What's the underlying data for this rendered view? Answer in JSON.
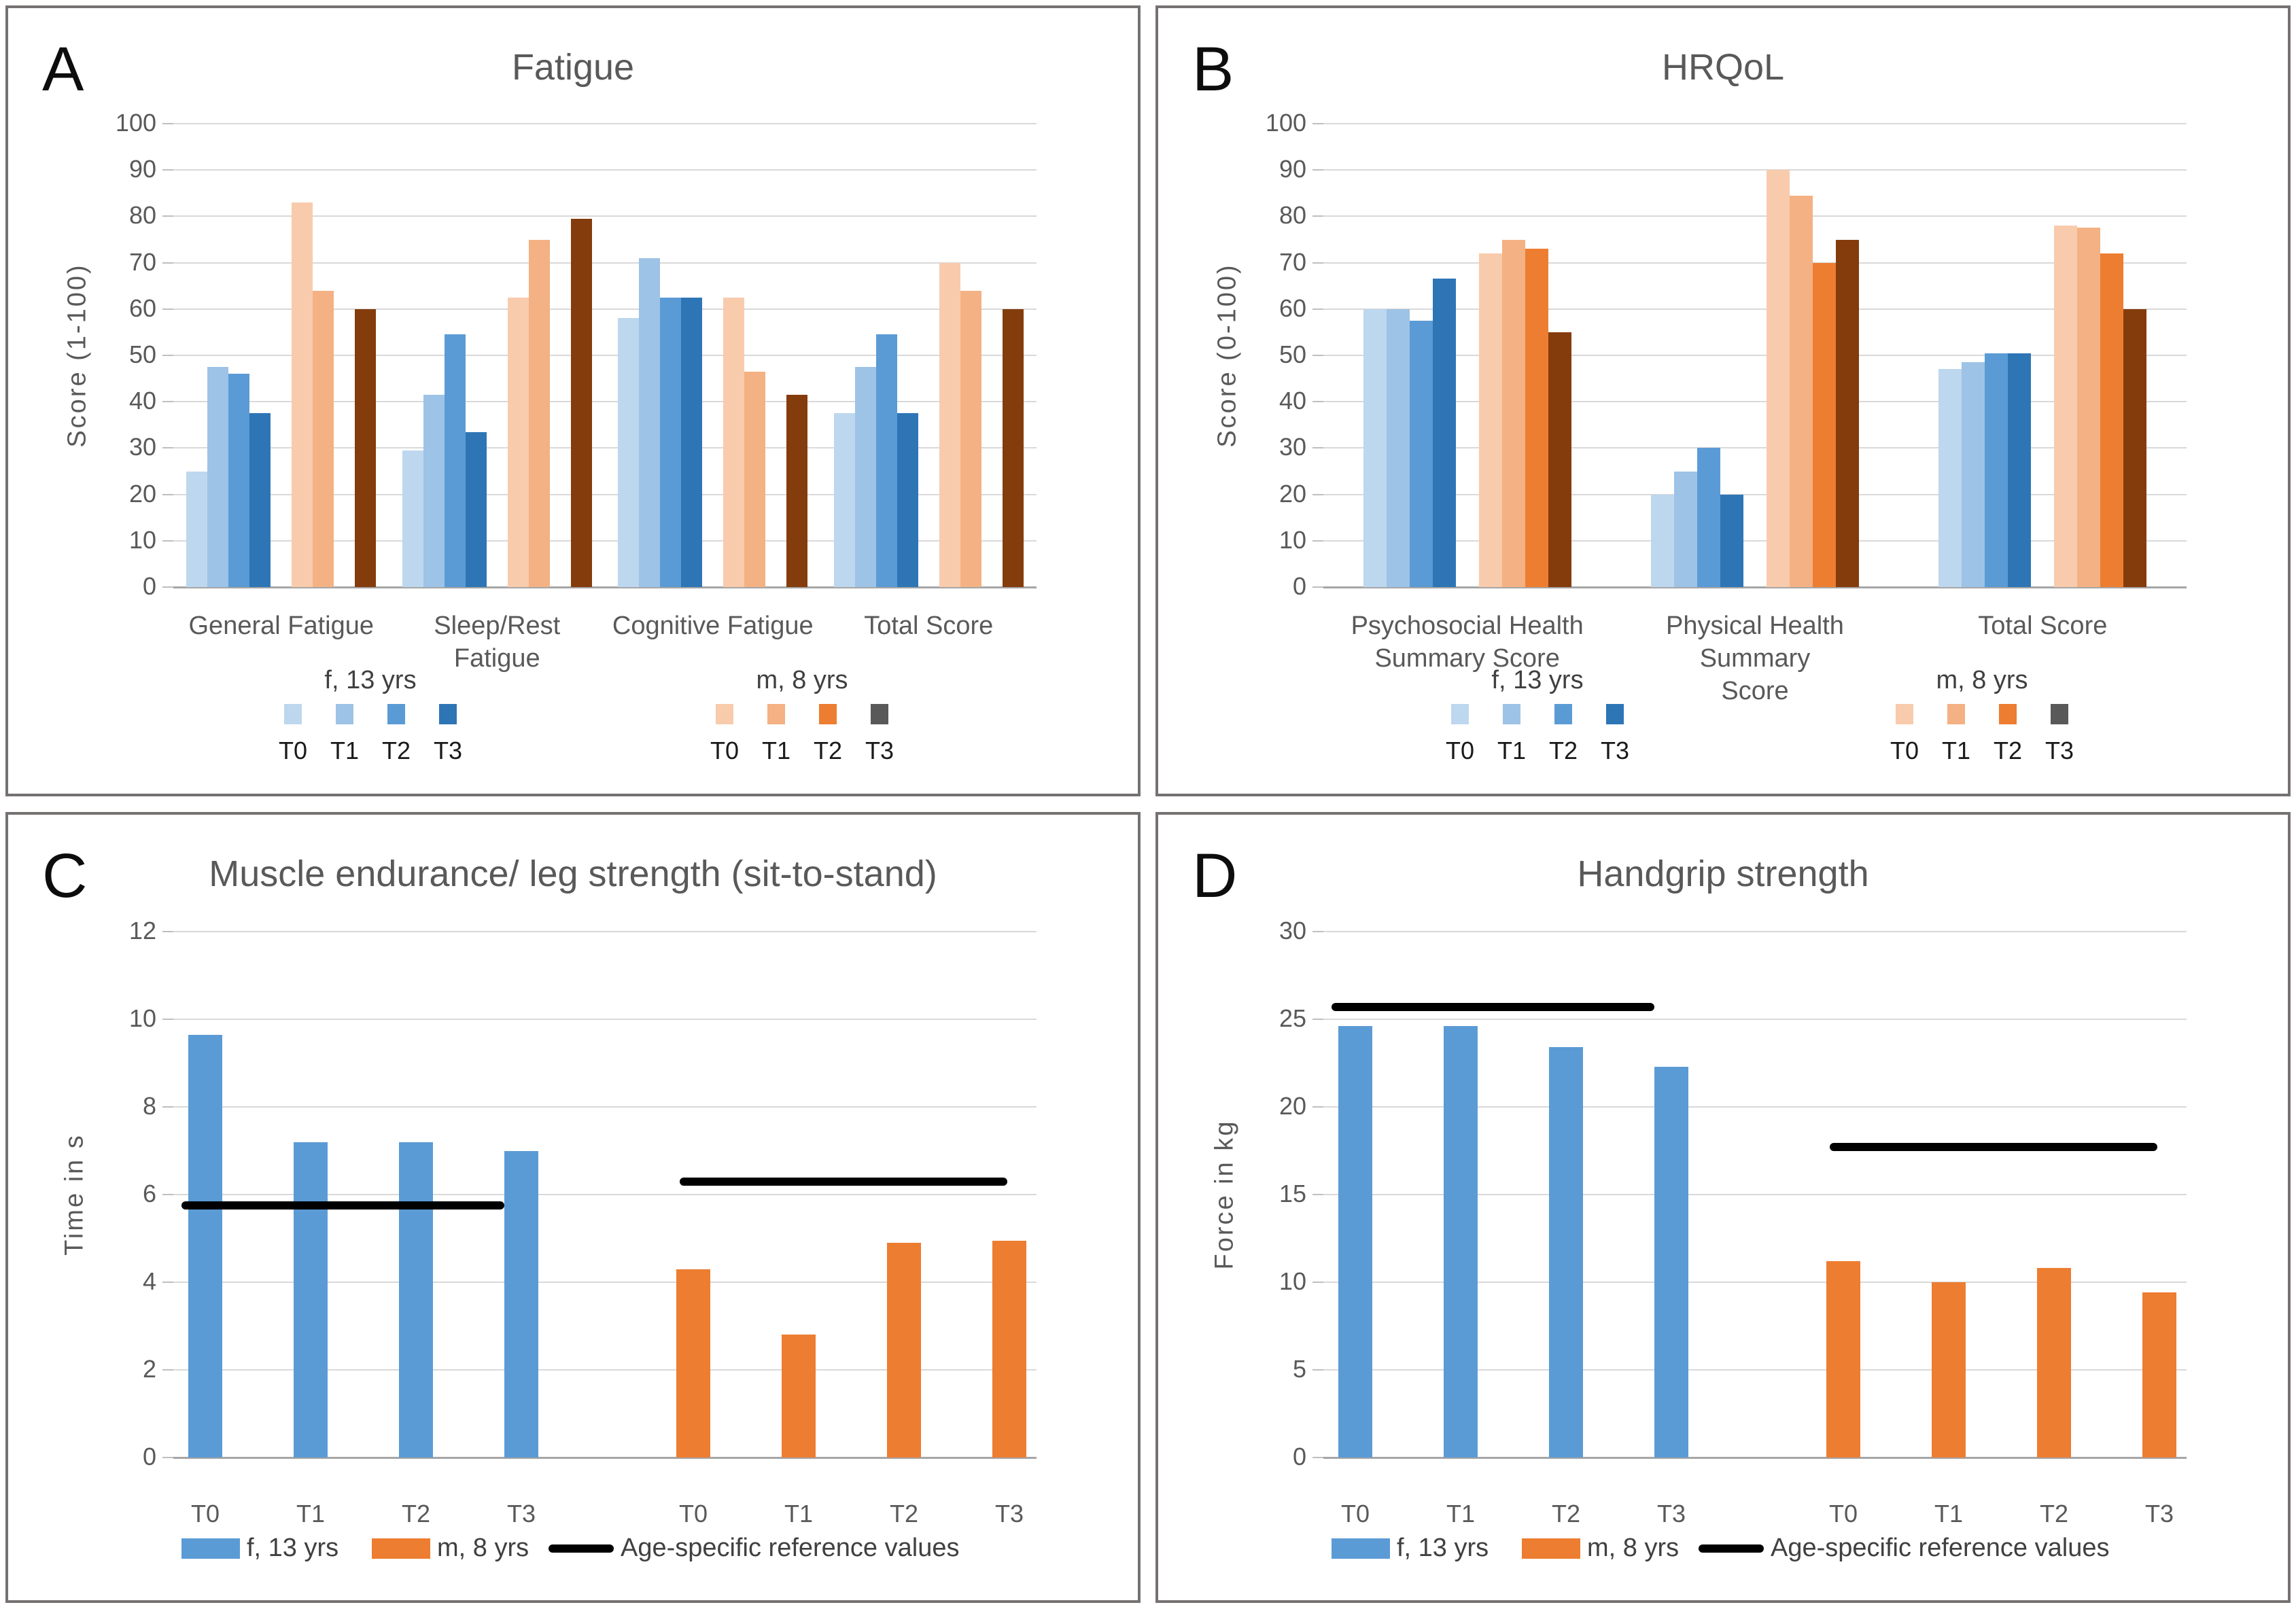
{
  "figure": {
    "background": "#FFFFFF",
    "panel_border_color": "#767171"
  },
  "colors": {
    "f_shades": [
      "#BDD7EE",
      "#9DC3E6",
      "#5B9BD5",
      "#2E75B6"
    ],
    "m_shades": [
      "#F8CBAD",
      "#F4B183",
      "#ED7D31",
      "#843C0C"
    ],
    "m_legend_swatches": [
      "#F8CBAD",
      "#F4B183",
      "#ED7D31",
      "#595959"
    ],
    "f_main": "#5B9BD5",
    "m_main": "#ED7D31",
    "reference_line": "#000000",
    "gridline": "#D9D9D9",
    "axis_line": "#A6A6A6",
    "tick_mark": "#BFBFBF",
    "text": "#595959"
  },
  "chart_data": [
    {
      "panel": "A",
      "type": "bar",
      "layout": "grouped",
      "title": "Fatigue",
      "ylabel": "Score (1-100)",
      "ylim": [
        0,
        100
      ],
      "ytick_step": 10,
      "yticks": [
        0,
        10,
        20,
        30,
        40,
        50,
        60,
        70,
        80,
        90,
        100
      ],
      "grid": true,
      "categories": [
        "General Fatigue",
        "Sleep/Rest Fatigue",
        "Cognitive Fatigue",
        "Total Score"
      ],
      "category_lines": [
        [
          "General Fatigue"
        ],
        [
          "Sleep/Rest Fatigue"
        ],
        [
          "Cognitive Fatigue"
        ],
        [
          "Total Score"
        ]
      ],
      "groups": [
        {
          "name": "f, 13 yrs",
          "series": [
            {
              "name": "T0",
              "values": [
                25,
                29.5,
                58,
                37.5
              ]
            },
            {
              "name": "T1",
              "values": [
                47.5,
                41.5,
                71,
                47.5
              ]
            },
            {
              "name": "T2",
              "values": [
                46,
                54.5,
                62.5,
                54.5
              ]
            },
            {
              "name": "T3",
              "values": [
                37.5,
                33.5,
                62.5,
                37.5
              ]
            }
          ]
        },
        {
          "name": "m, 8 yrs",
          "series": [
            {
              "name": "T0",
              "values": [
                83,
                62.5,
                62.5,
                70
              ]
            },
            {
              "name": "T1",
              "values": [
                64,
                75,
                46.5,
                64
              ]
            },
            {
              "name": "T2",
              "values": [
                null,
                null,
                null,
                null
              ]
            },
            {
              "name": "T3",
              "values": [
                60,
                79.5,
                41.5,
                60
              ]
            }
          ]
        }
      ],
      "legend": {
        "f_label": "f, 13 yrs",
        "m_label": "m, 8 yrs",
        "timepoints": [
          "T0",
          "T1",
          "T2",
          "T3"
        ]
      }
    },
    {
      "panel": "B",
      "type": "bar",
      "layout": "grouped",
      "title": "HRQoL",
      "ylabel": "Score (0-100)",
      "ylim": [
        0,
        100
      ],
      "ytick_step": 10,
      "yticks": [
        0,
        10,
        20,
        30,
        40,
        50,
        60,
        70,
        80,
        90,
        100
      ],
      "grid": true,
      "categories": [
        "Psychosocial Health Summary Score",
        "Physical Health Summary Score",
        "Total Score"
      ],
      "category_lines": [
        [
          "Psychosocial Health",
          "Summary Score"
        ],
        [
          "Physical Health Summary",
          "Score"
        ],
        [
          "Total Score"
        ]
      ],
      "groups": [
        {
          "name": "f, 13 yrs",
          "series": [
            {
              "name": "T0",
              "values": [
                60,
                20,
                47
              ]
            },
            {
              "name": "T1",
              "values": [
                60,
                25,
                48.5
              ]
            },
            {
              "name": "T2",
              "values": [
                57.5,
                30,
                50.5
              ]
            },
            {
              "name": "T3",
              "values": [
                66.5,
                20,
                50.5
              ]
            }
          ]
        },
        {
          "name": "m, 8 yrs",
          "series": [
            {
              "name": "T0",
              "values": [
                72,
                90,
                78
              ]
            },
            {
              "name": "T1",
              "values": [
                75,
                84.5,
                77.5
              ]
            },
            {
              "name": "T2",
              "values": [
                73,
                70,
                72
              ]
            },
            {
              "name": "T3",
              "values": [
                55,
                75,
                60
              ]
            }
          ]
        }
      ],
      "legend": {
        "f_label": "f, 13 yrs",
        "m_label": "m, 8 yrs",
        "timepoints": [
          "T0",
          "T1",
          "T2",
          "T3"
        ]
      }
    },
    {
      "panel": "C",
      "type": "bar",
      "layout": "pairs",
      "title": "Muscle endurance/ leg strength (sit-to-stand)",
      "ylabel": "Time in s",
      "ylim": [
        0,
        12
      ],
      "ytick_step": 2,
      "yticks": [
        0,
        2,
        4,
        6,
        8,
        10,
        12
      ],
      "grid": true,
      "x": [
        "T0",
        "T1",
        "T2",
        "T3"
      ],
      "series": [
        {
          "name": "f, 13 yrs",
          "color": "#5B9BD5",
          "values": [
            9.65,
            7.2,
            7.2,
            7.0
          ],
          "reference_value": 5.75
        },
        {
          "name": "m, 8 yrs",
          "color": "#ED7D31",
          "values": [
            4.3,
            2.8,
            4.9,
            4.95
          ],
          "reference_value": 6.3
        }
      ],
      "legend": {
        "f_label": "f, 13 yrs",
        "m_label": "m, 8 yrs",
        "ref_label": "Age-specific reference values"
      }
    },
    {
      "panel": "D",
      "type": "bar",
      "layout": "pairs",
      "title": "Handgrip strength",
      "ylabel": "Force in kg",
      "ylim": [
        0,
        30
      ],
      "ytick_step": 5,
      "yticks": [
        0,
        5,
        10,
        15,
        20,
        25,
        30
      ],
      "grid": true,
      "x": [
        "T0",
        "T1",
        "T2",
        "T3"
      ],
      "series": [
        {
          "name": "f, 13 yrs",
          "color": "#5B9BD5",
          "values": [
            24.6,
            24.6,
            23.4,
            22.3
          ],
          "reference_value": 25.7
        },
        {
          "name": "m, 8 yrs",
          "color": "#ED7D31",
          "values": [
            11.2,
            10.0,
            10.8,
            9.4
          ],
          "reference_value": 17.7
        }
      ],
      "legend": {
        "f_label": "f, 13 yrs",
        "m_label": "m, 8 yrs",
        "ref_label": "Age-specific reference values"
      }
    }
  ]
}
